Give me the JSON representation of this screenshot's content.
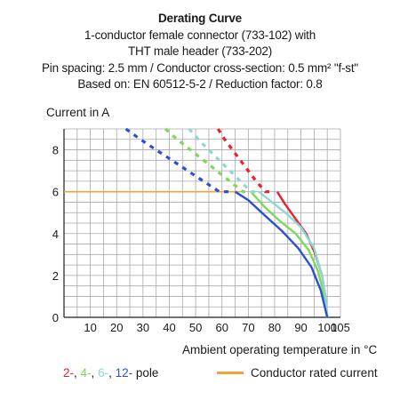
{
  "chart_data": {
    "type": "line",
    "title": "Derating Curve",
    "subtitle_lines": [
      "1-conductor female connector (733-102) with",
      "THT male header (733-202)",
      "Pin spacing: 2.5 mm / Conductor cross-section: 0.5 mm² \"f-st\"",
      "Based on: EN 60512-5-2 / Reduction factor: 0.8"
    ],
    "ylabel": "Current in A",
    "xlabel": "Ambient operating temperature in °C",
    "xlim": [
      0,
      105
    ],
    "ylim": [
      0,
      9
    ],
    "x_ticks": [
      10,
      20,
      30,
      40,
      50,
      60,
      70,
      80,
      90,
      100,
      105
    ],
    "y_ticks": [
      0,
      2,
      4,
      6,
      8
    ],
    "grid": true,
    "series": [
      {
        "name": "2-pole",
        "color": "#e8222b",
        "dashed": [
          [
            58.5,
            9.0
          ],
          [
            61,
            8.5
          ],
          [
            64,
            8.0
          ],
          [
            67,
            7.5
          ],
          [
            70,
            7.0
          ],
          [
            73,
            6.5
          ],
          [
            76.5,
            6.0
          ],
          [
            80,
            6.0
          ]
        ],
        "solid": [
          [
            81,
            6.0
          ],
          [
            84,
            5.4
          ],
          [
            88,
            4.7
          ],
          [
            92,
            4.0
          ],
          [
            95.5,
            3.0
          ],
          [
            98,
            2.0
          ],
          [
            99.3,
            1.0
          ],
          [
            100,
            0.0
          ]
        ]
      },
      {
        "name": "4-pole",
        "color": "#7fd85a",
        "dashed": [
          [
            38.5,
            9.0
          ],
          [
            43,
            8.5
          ],
          [
            48,
            8.0
          ],
          [
            53,
            7.5
          ],
          [
            58,
            7.0
          ],
          [
            63,
            6.5
          ],
          [
            68,
            6.0
          ],
          [
            70.5,
            6.0
          ]
        ],
        "solid": [
          [
            71,
            6.0
          ],
          [
            76,
            5.3
          ],
          [
            82,
            4.6
          ],
          [
            88,
            4.0
          ],
          [
            93,
            3.2
          ],
          [
            96.5,
            2.2
          ],
          [
            98.5,
            1.2
          ],
          [
            100,
            0.0
          ]
        ]
      },
      {
        "name": "6-pole",
        "color": "#8adad4",
        "dashed": [
          [
            47.5,
            9.0
          ],
          [
            51,
            8.5
          ],
          [
            55,
            8.0
          ],
          [
            59,
            7.5
          ],
          [
            63,
            7.0
          ],
          [
            67,
            6.5
          ],
          [
            71,
            6.0
          ],
          [
            73.5,
            6.0
          ]
        ],
        "solid": [
          [
            74,
            6.0
          ],
          [
            79,
            5.5
          ],
          [
            85,
            4.9
          ],
          [
            90,
            4.3
          ],
          [
            95,
            3.3
          ],
          [
            98,
            2.0
          ],
          [
            99.3,
            1.0
          ],
          [
            100,
            0.0
          ]
        ]
      },
      {
        "name": "12-pole",
        "color": "#2a4fd6",
        "dashed": [
          [
            23.5,
            9.0
          ],
          [
            29,
            8.5
          ],
          [
            35,
            8.0
          ],
          [
            41,
            7.5
          ],
          [
            47,
            7.0
          ],
          [
            53,
            6.5
          ],
          [
            59,
            6.0
          ],
          [
            64.5,
            6.0
          ]
        ],
        "solid": [
          [
            65,
            6.0
          ],
          [
            70,
            5.6
          ],
          [
            76,
            4.9
          ],
          [
            83,
            4.1
          ],
          [
            89,
            3.3
          ],
          [
            94,
            2.4
          ],
          [
            97.5,
            1.3
          ],
          [
            100,
            0.0
          ]
        ]
      }
    ],
    "reference_line": {
      "name": "Conductor rated current",
      "color": "#f4a33c",
      "value": 6.0,
      "x_range": [
        0,
        67
      ]
    }
  },
  "legend": {
    "pole_parts": [
      {
        "text": "2-",
        "color": "#e8222b"
      },
      {
        "text": ", ",
        "color": "#1a1a1a"
      },
      {
        "text": "4-",
        "color": "#7fd85a"
      },
      {
        "text": ", ",
        "color": "#1a1a1a"
      },
      {
        "text": "6-",
        "color": "#8adad4"
      },
      {
        "text": ", ",
        "color": "#1a1a1a"
      },
      {
        "text": "12-",
        "color": "#2a4fd6"
      },
      {
        "text": " pole",
        "color": "#1a1a1a"
      }
    ],
    "rated_label": "Conductor rated current",
    "rated_color": "#f4a33c"
  }
}
